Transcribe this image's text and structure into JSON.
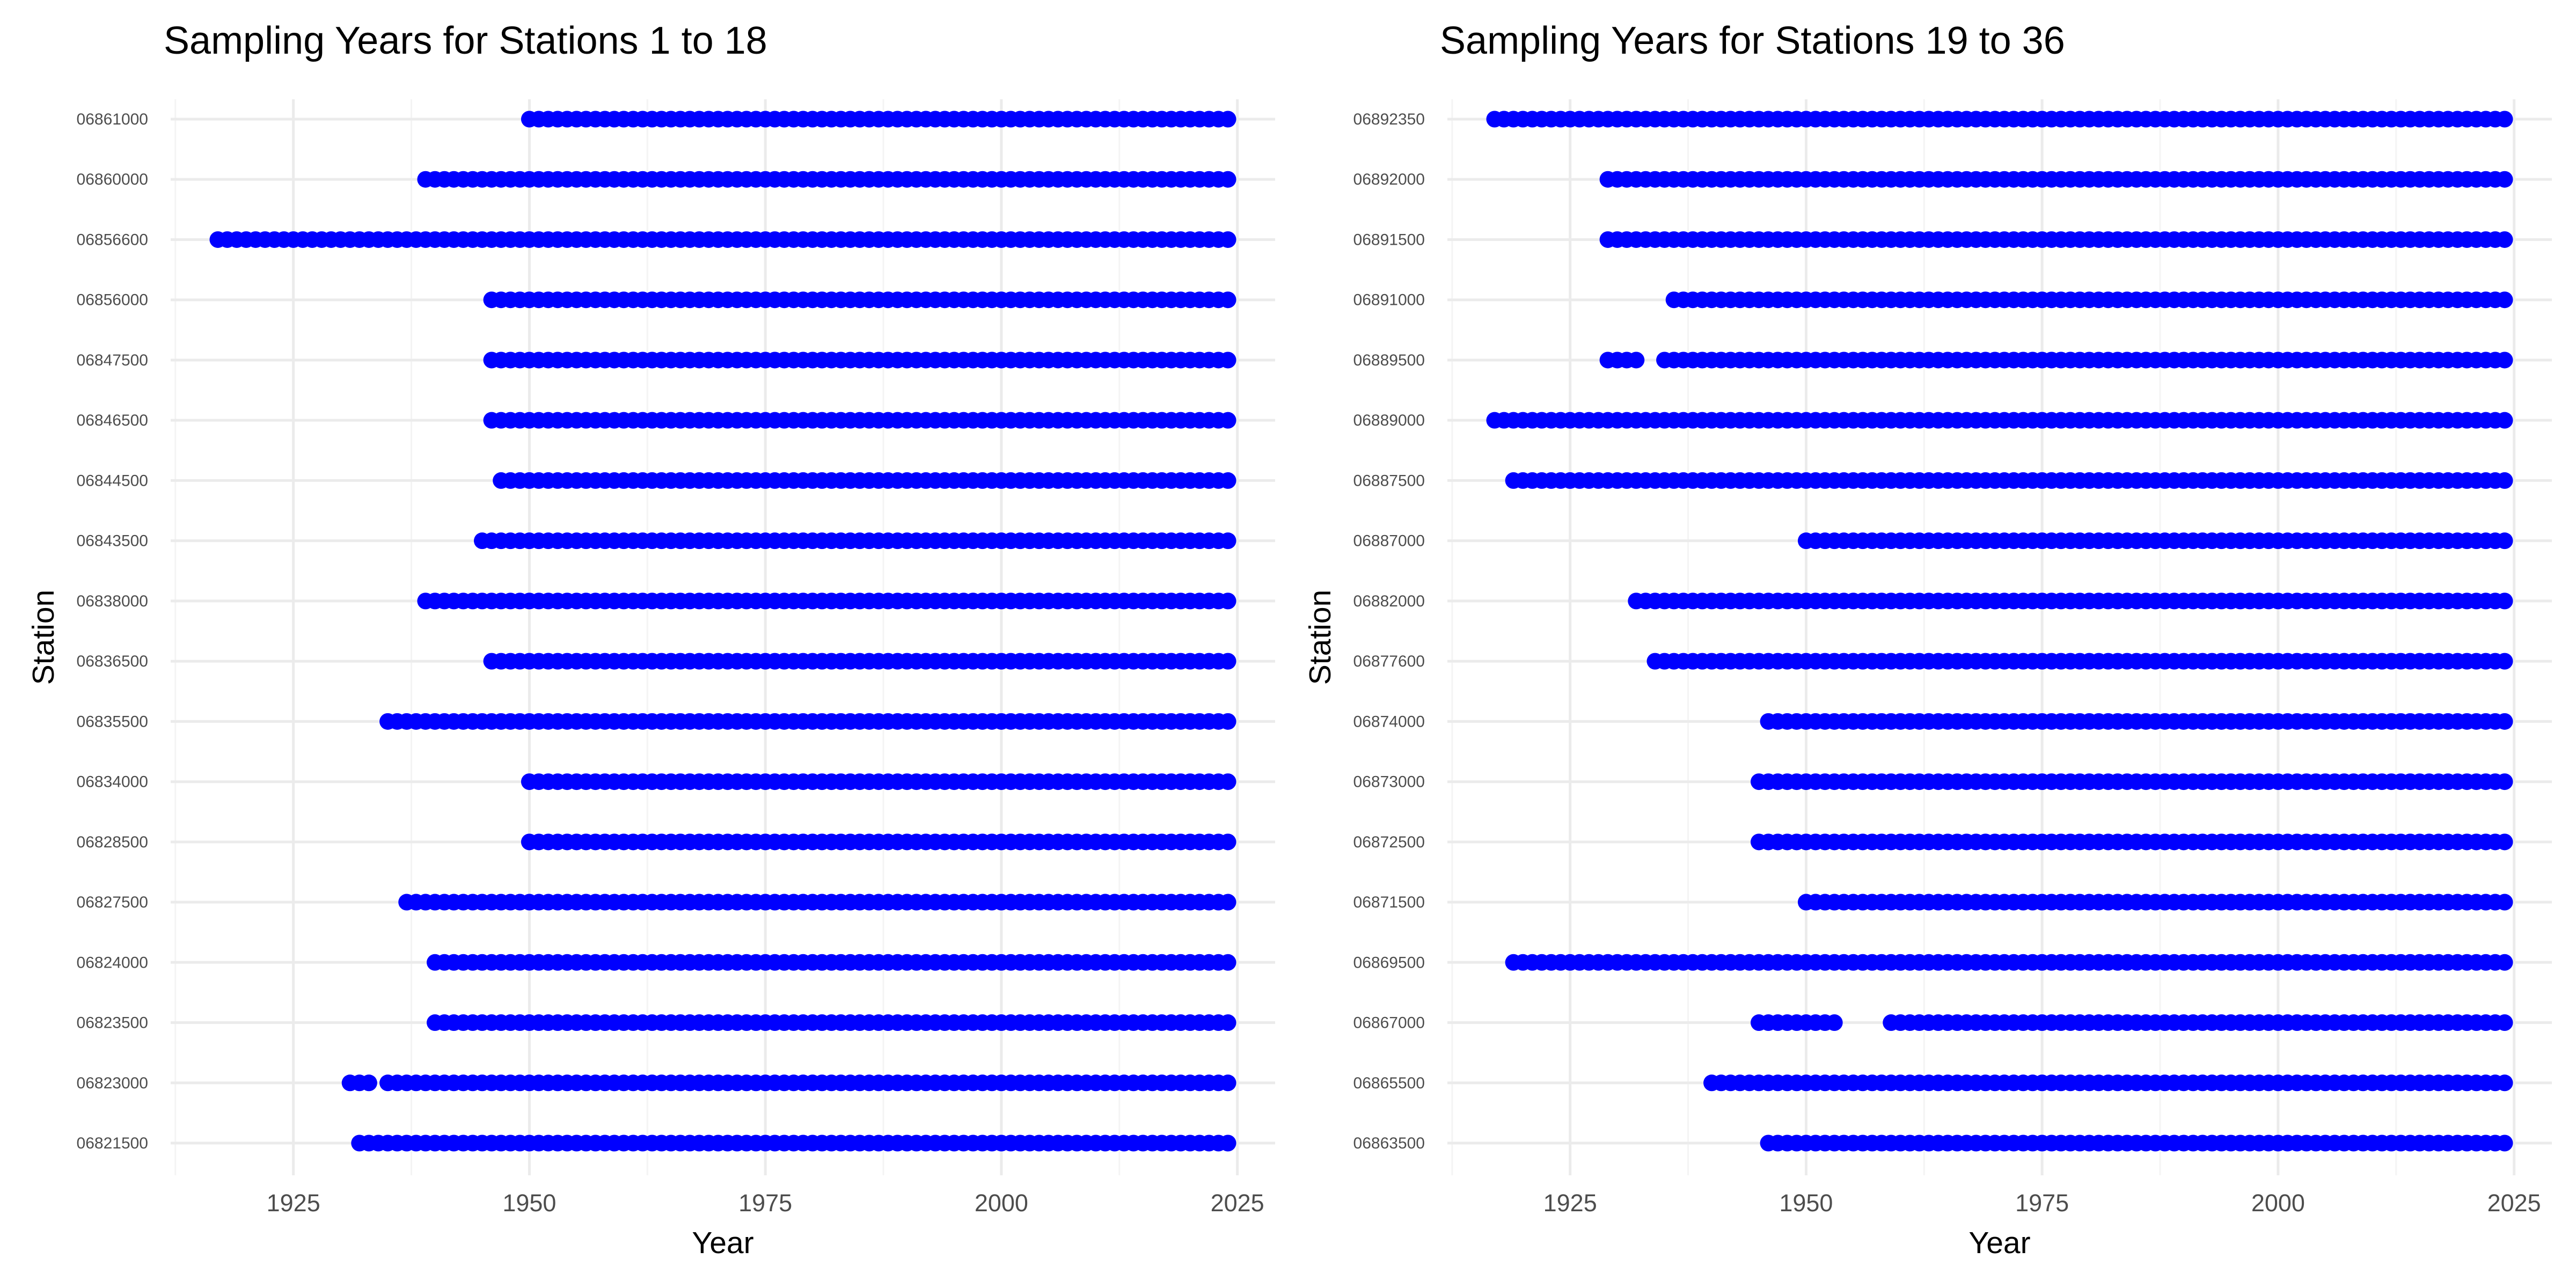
{
  "chart_data": [
    {
      "type": "scatter",
      "title": "Sampling Years for Stations 1 to 18",
      "xlabel": "Year",
      "ylabel": "Station",
      "xlim": [
        1912,
        2029
      ],
      "x_ticks": [
        1925,
        1950,
        1975,
        2000,
        2025
      ],
      "grid": true,
      "legend": "none",
      "point_color": "#0000FF",
      "stations": [
        {
          "id": "06861000",
          "ranges": [
            [
              1950,
              2024
            ]
          ]
        },
        {
          "id": "06860000",
          "ranges": [
            [
              1939,
              2024
            ]
          ]
        },
        {
          "id": "06856600",
          "ranges": [
            [
              1917,
              2024
            ]
          ]
        },
        {
          "id": "06856000",
          "ranges": [
            [
              1946,
              2024
            ]
          ]
        },
        {
          "id": "06847500",
          "ranges": [
            [
              1946,
              2024
            ]
          ]
        },
        {
          "id": "06846500",
          "ranges": [
            [
              1946,
              2024
            ]
          ]
        },
        {
          "id": "06844500",
          "ranges": [
            [
              1947,
              2024
            ]
          ]
        },
        {
          "id": "06843500",
          "ranges": [
            [
              1945,
              2024
            ]
          ]
        },
        {
          "id": "06838000",
          "ranges": [
            [
              1939,
              2024
            ]
          ]
        },
        {
          "id": "06836500",
          "ranges": [
            [
              1946,
              2024
            ]
          ]
        },
        {
          "id": "06835500",
          "ranges": [
            [
              1935,
              2024
            ]
          ]
        },
        {
          "id": "06834000",
          "ranges": [
            [
              1950,
              2024
            ]
          ]
        },
        {
          "id": "06828500",
          "ranges": [
            [
              1950,
              2024
            ]
          ]
        },
        {
          "id": "06827500",
          "ranges": [
            [
              1937,
              2024
            ]
          ]
        },
        {
          "id": "06824000",
          "ranges": [
            [
              1940,
              2024
            ]
          ]
        },
        {
          "id": "06823500",
          "ranges": [
            [
              1940,
              2024
            ]
          ]
        },
        {
          "id": "06823000",
          "ranges": [
            [
              1931,
              1933
            ],
            [
              1935,
              2024
            ]
          ]
        },
        {
          "id": "06821500",
          "ranges": [
            [
              1932,
              2024
            ]
          ]
        }
      ]
    },
    {
      "type": "scatter",
      "title": "Sampling Years for Stations 19 to 36",
      "xlabel": "Year",
      "ylabel": "Station",
      "xlim": [
        1912,
        2029
      ],
      "x_ticks": [
        1925,
        1950,
        1975,
        2000,
        2025
      ],
      "grid": true,
      "legend": "none",
      "point_color": "#0000FF",
      "stations": [
        {
          "id": "06892350",
          "ranges": [
            [
              1917,
              2024
            ]
          ]
        },
        {
          "id": "06892000",
          "ranges": [
            [
              1929,
              2024
            ]
          ]
        },
        {
          "id": "06891500",
          "ranges": [
            [
              1929,
              2024
            ]
          ]
        },
        {
          "id": "06891000",
          "ranges": [
            [
              1936,
              2024
            ]
          ]
        },
        {
          "id": "06889500",
          "ranges": [
            [
              1929,
              1932
            ],
            [
              1935,
              2024
            ]
          ]
        },
        {
          "id": "06889000",
          "ranges": [
            [
              1917,
              2024
            ]
          ]
        },
        {
          "id": "06887500",
          "ranges": [
            [
              1919,
              2024
            ]
          ]
        },
        {
          "id": "06887000",
          "ranges": [
            [
              1950,
              2024
            ]
          ]
        },
        {
          "id": "06882000",
          "ranges": [
            [
              1932,
              2024
            ]
          ]
        },
        {
          "id": "06877600",
          "ranges": [
            [
              1934,
              2024
            ]
          ]
        },
        {
          "id": "06874000",
          "ranges": [
            [
              1946,
              2024
            ]
          ]
        },
        {
          "id": "06873000",
          "ranges": [
            [
              1945,
              2024
            ]
          ]
        },
        {
          "id": "06872500",
          "ranges": [
            [
              1945,
              2024
            ]
          ]
        },
        {
          "id": "06871500",
          "ranges": [
            [
              1950,
              2024
            ]
          ]
        },
        {
          "id": "06869500",
          "ranges": [
            [
              1919,
              2024
            ]
          ]
        },
        {
          "id": "06867000",
          "ranges": [
            [
              1945,
              1953
            ],
            [
              1959,
              2024
            ]
          ]
        },
        {
          "id": "06865500",
          "ranges": [
            [
              1940,
              2024
            ]
          ]
        },
        {
          "id": "06863500",
          "ranges": [
            [
              1946,
              2024
            ]
          ]
        }
      ]
    }
  ]
}
